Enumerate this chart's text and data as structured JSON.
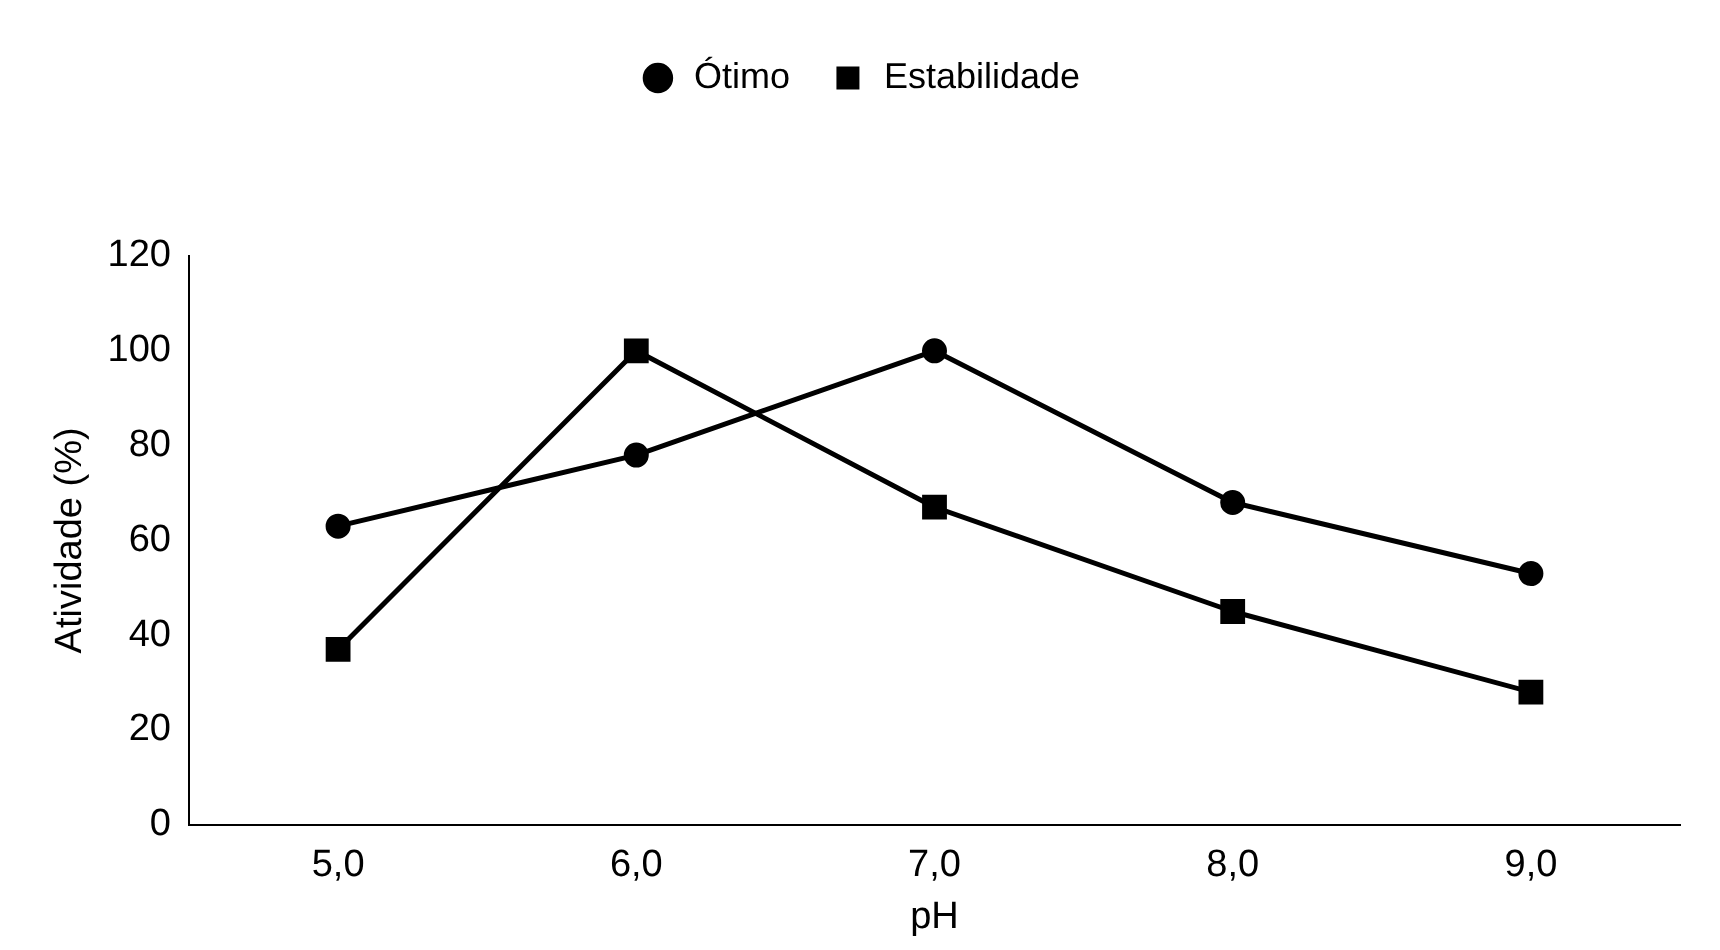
{
  "chart_data": {
    "type": "line",
    "xlabel": "pH",
    "ylabel": "Atividade (%)",
    "categories": [
      "5,0",
      "6,0",
      "7,0",
      "8,0",
      "9,0"
    ],
    "series": [
      {
        "name": "Ótimo",
        "color": "#000000",
        "marker": "circle",
        "values": [
          63,
          78,
          100,
          68,
          53
        ]
      },
      {
        "name": "Estabilidade",
        "color": "#000000",
        "marker": "square",
        "values": [
          37,
          100,
          67,
          45,
          28
        ]
      }
    ],
    "ylim": [
      0,
      120
    ],
    "yticks": [
      0,
      20,
      40,
      60,
      80,
      100,
      120
    ],
    "grid": false,
    "legend": "top",
    "line_style": "solid"
  }
}
